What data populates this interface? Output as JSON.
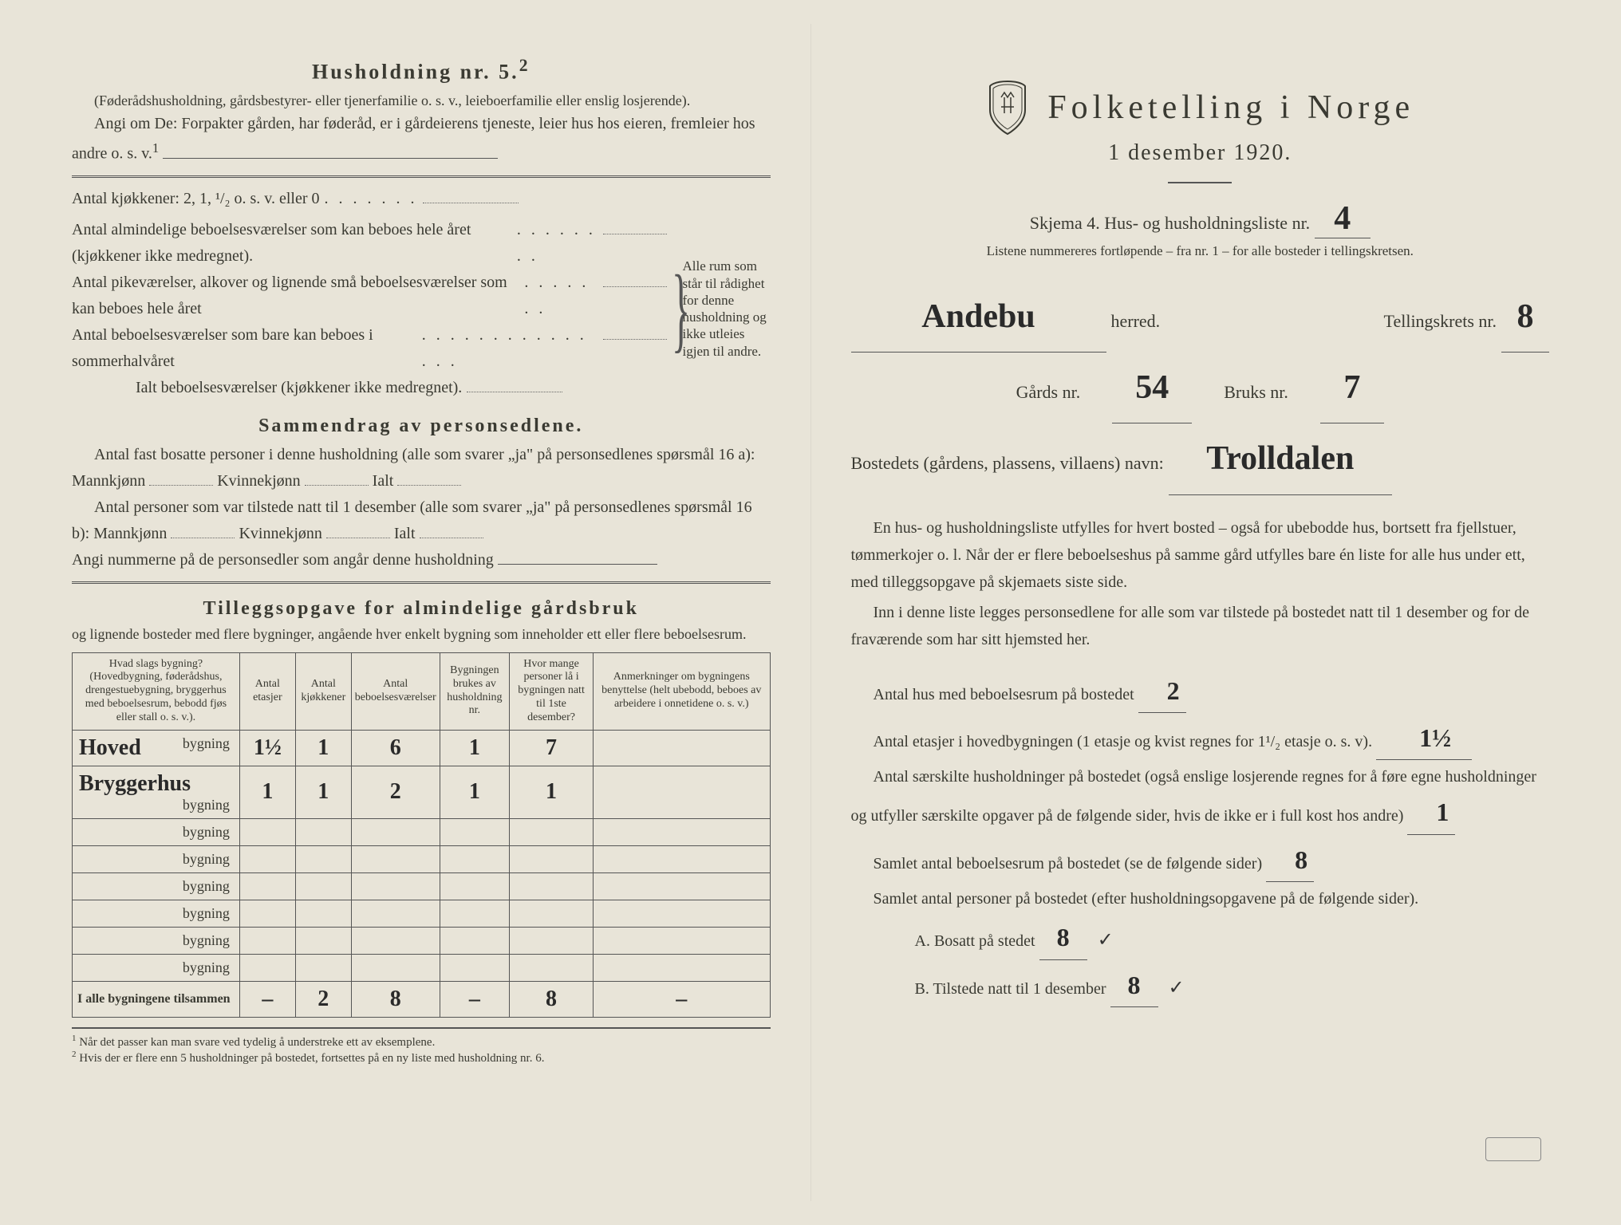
{
  "left": {
    "heading": "Husholdning nr. 5.",
    "heading_sup": "2",
    "para1": "(Føderådshusholdning, gårdsbestyrer- eller tjenerfamilie o. s. v., leieboerfamilie eller enslig losjerende).",
    "para2": "Angi om De: Forpakter gården, har føderåd, er i gårdeierens tjeneste, leier hus hos eieren, fremleier hos andre o. s. v.",
    "para2_sup": "1",
    "kitchens_label": "Antal kjøkkener: 2, 1, ¹/₂ o. s. v. eller 0",
    "rooms1": "Antal almindelige beboelsesværelser som kan beboes hele året (kjøkkener ikke medregnet).",
    "rooms2": "Antal pikeværelser, alkover og lignende små beboelsesværelser som kan beboes hele året",
    "rooms3": "Antal beboelsesværelser som bare kan beboes i sommerhalvåret",
    "rooms_total": "Ialt beboelsesværelser  (kjøkkener ikke medregnet).",
    "brace_note": "Alle rum som står til rådighet for denne husholdning og ikke utleies igjen til andre.",
    "sammendrag_heading": "Sammendrag av personsedlene.",
    "samm1": "Antal fast bosatte personer i denne husholdning (alle som svarer „ja\" på personsedlenes spørsmål 16 a): Mannkjønn",
    "samm1_k": "Kvinnekjønn",
    "samm1_i": "Ialt",
    "samm2": "Antal personer som var tilstede natt til 1 desember (alle som svarer „ja\" på personsedlenes spørsmål 16 b): Mannkjønn",
    "samm3": "Angi nummerne på de personsedler som angår denne husholdning",
    "tillegg_heading": "Tilleggsopgave for almindelige gårdsbruk",
    "tillegg_sub": "og lignende bosteder med flere bygninger, angående hver enkelt bygning som inneholder ett eller flere beboelsesrum.",
    "table": {
      "headers": [
        "Hvad slags bygning?\n(Hovedbygning, føderådshus, drengestuebygning, bryggerhus med beboelsesrum, bebodd fjøs eller stall o. s. v.).",
        "Antal etasjer",
        "Antal kjøkkener",
        "Antal beboelsesværelser",
        "Bygningen brukes av husholdning nr.",
        "Hvor mange personer lå i bygningen natt til 1ste desember?",
        "Anmerkninger om bygningens benyttelse (helt ubebodd, beboes av arbeidere i onnetidene o. s. v.)"
      ],
      "rows": [
        {
          "type": "Hoved",
          "etasjer": "1½",
          "kjokken": "1",
          "vaer": "6",
          "hush": "1",
          "pers": "7",
          "anm": ""
        },
        {
          "type": "Bryggerhus",
          "etasjer": "1",
          "kjokken": "1",
          "vaer": "2",
          "hush": "1",
          "pers": "1",
          "anm": ""
        },
        {
          "type": "",
          "etasjer": "",
          "kjokken": "",
          "vaer": "",
          "hush": "",
          "pers": "",
          "anm": ""
        },
        {
          "type": "",
          "etasjer": "",
          "kjokken": "",
          "vaer": "",
          "hush": "",
          "pers": "",
          "anm": ""
        },
        {
          "type": "",
          "etasjer": "",
          "kjokken": "",
          "vaer": "",
          "hush": "",
          "pers": "",
          "anm": ""
        },
        {
          "type": "",
          "etasjer": "",
          "kjokken": "",
          "vaer": "",
          "hush": "",
          "pers": "",
          "anm": ""
        },
        {
          "type": "",
          "etasjer": "",
          "kjokken": "",
          "vaer": "",
          "hush": "",
          "pers": "",
          "anm": ""
        },
        {
          "type": "",
          "etasjer": "",
          "kjokken": "",
          "vaer": "",
          "hush": "",
          "pers": "",
          "anm": ""
        }
      ],
      "total_label": "I alle bygningene tilsammen",
      "totals": {
        "etasjer": "–",
        "kjokken": "2",
        "vaer": "8",
        "hush": "–",
        "pers": "8",
        "anm": "–"
      },
      "bygning_word": "bygning"
    },
    "footnote1": "Når det passer kan man svare ved tydelig å understreke ett av eksemplene.",
    "footnote2": "Hvis der er flere enn 5 husholdninger på bostedet, fortsettes på en ny liste med husholdning nr. 6."
  },
  "right": {
    "title": "Folketelling i Norge",
    "subtitle": "1 desember 1920.",
    "skjema": "Skjema 4.  Hus- og husholdningsliste nr.",
    "skjema_nr": "4",
    "listene": "Listene nummereres fortløpende – fra nr. 1 – for alle bosteder i tellingskretsen.",
    "herred_value": "Andebu",
    "herred_label": "herred.",
    "tellingskrets_label": "Tellingskrets nr.",
    "tellingskrets_nr": "8",
    "gards_label": "Gårds nr.",
    "gards_nr": "54",
    "bruks_label": "Bruks nr.",
    "bruks_nr": "7",
    "bosted_label": "Bostedets (gårdens, plassens, villaens) navn:",
    "bosted_value": "Trolldalen",
    "para1": "En hus- og husholdningsliste utfylles for hvert bosted – også for ubebodde hus, bortsett fra fjellstuer, tømmerkojer o. l.  Når der er flere beboelseshus på samme gård utfylles bare én liste for alle hus under ett, med tilleggsopgave på skjemaets siste side.",
    "para2": "Inn i denne liste legges personsedlene for alle som var tilstede på bostedet natt til 1 desember og for de fraværende som har sitt hjemsted her.",
    "q1_label": "Antal hus med beboelsesrum på bostedet",
    "q1_value": "2",
    "q2_label_a": "Antal etasjer i hovedbygningen (1 etasje og kvist regnes for 1¹/₂ etasje o. s. v).",
    "q2_value": "1½",
    "q3_label": "Antal særskilte husholdninger på bostedet (også enslige losjerende regnes for å føre egne husholdninger og utfyller særskilte opgaver på de følgende sider, hvis de ikke er i full kost hos andre)",
    "q3_value": "1",
    "q4_label": "Samlet antal beboelsesrum på bostedet (se de følgende sider)",
    "q4_value": "8",
    "q5_label": "Samlet antal personer på bostedet (efter husholdningsopgavene på de følgende sider).",
    "q5a_label": "A.  Bosatt på stedet",
    "q5a_value": "8",
    "q5b_label": "B.  Tilstede natt til 1 desember",
    "q5b_value": "8",
    "check": "✓"
  },
  "colors": {
    "paper": "#e8e4d8",
    "ink": "#3a3a32",
    "handwriting": "#2a2a2a"
  }
}
